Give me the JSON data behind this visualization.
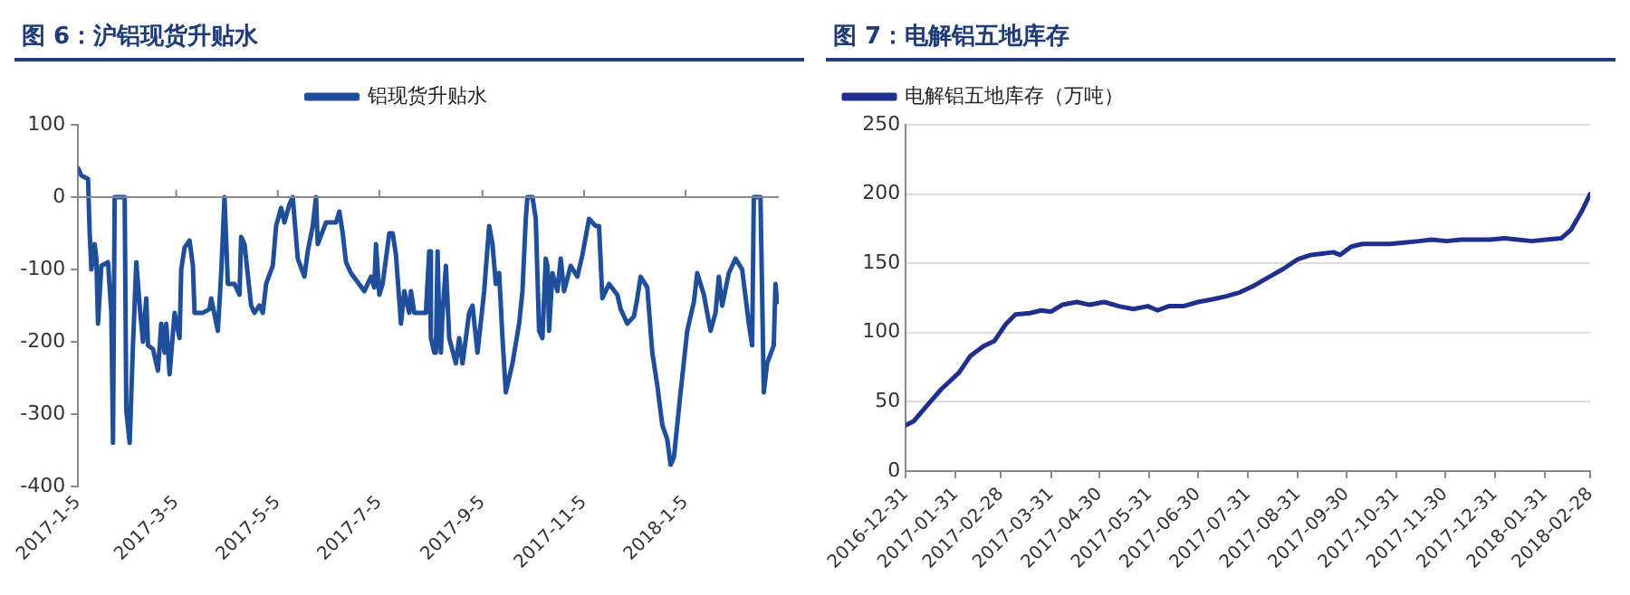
{
  "chart_data": [
    {
      "type": "line",
      "title": "图 6：沪铝现货升贴水",
      "legend": "top",
      "marker": "none",
      "xlim": [
        "2017-01-05",
        "2018-03-02"
      ],
      "ylim": [
        -400,
        100
      ],
      "xticks": [
        {
          "value": "2017-01-05",
          "label": "2017-1-5"
        },
        {
          "value": "2017-03-05",
          "label": "2017-3-5"
        },
        {
          "value": "2017-05-05",
          "label": "2017-5-5"
        },
        {
          "value": "2017-07-05",
          "label": "2017-7-5"
        },
        {
          "value": "2017-09-05",
          "label": "2017-9-5"
        },
        {
          "value": "2017-11-05",
          "label": "2017-11-5"
        },
        {
          "value": "2018-01-05",
          "label": "2018-1-5"
        }
      ],
      "yticks": [
        -400,
        -300,
        -200,
        -100,
        0,
        100
      ],
      "series": [
        {
          "name": "铝现货升贴水",
          "color": "#1f4e9a",
          "x": [
            "2017-01-05",
            "2017-01-07",
            "2017-01-11",
            "2017-01-12",
            "2017-01-13",
            "2017-01-15",
            "2017-01-16",
            "2017-01-17",
            "2017-01-19",
            "2017-01-23",
            "2017-01-25",
            "2017-01-26",
            "2017-01-27",
            "2017-02-02",
            "2017-02-03",
            "2017-02-05",
            "2017-02-07",
            "2017-02-09",
            "2017-02-11",
            "2017-02-13",
            "2017-02-15",
            "2017-02-16",
            "2017-02-19",
            "2017-02-22",
            "2017-02-24",
            "2017-02-26",
            "2017-02-27",
            "2017-03-01",
            "2017-03-04",
            "2017-03-07",
            "2017-03-08",
            "2017-03-10",
            "2017-03-13",
            "2017-03-15",
            "2017-03-16",
            "2017-03-21",
            "2017-03-25",
            "2017-03-26",
            "2017-03-30",
            "2017-04-01",
            "2017-04-03",
            "2017-04-05",
            "2017-04-09",
            "2017-04-12",
            "2017-04-13",
            "2017-04-15",
            "2017-04-19",
            "2017-04-21",
            "2017-04-24",
            "2017-04-26",
            "2017-04-28",
            "2017-05-02",
            "2017-05-04",
            "2017-05-07",
            "2017-05-09",
            "2017-05-12",
            "2017-05-14",
            "2017-05-17",
            "2017-05-21",
            "2017-05-23",
            "2017-05-26",
            "2017-05-28",
            "2017-05-29",
            "2017-06-03",
            "2017-06-09",
            "2017-06-11",
            "2017-06-13",
            "2017-06-15",
            "2017-06-18",
            "2017-06-26",
            "2017-06-30",
            "2017-07-02",
            "2017-07-03",
            "2017-07-05",
            "2017-07-07",
            "2017-07-11",
            "2017-07-13",
            "2017-07-15",
            "2017-07-18",
            "2017-07-20",
            "2017-07-23",
            "2017-07-24",
            "2017-07-26",
            "2017-08-02",
            "2017-08-04",
            "2017-08-05",
            "2017-08-07",
            "2017-08-08",
            "2017-08-09",
            "2017-08-10",
            "2017-08-11",
            "2017-08-12",
            "2017-08-14",
            "2017-08-16",
            "2017-08-20",
            "2017-08-22",
            "2017-08-24",
            "2017-08-28",
            "2017-08-30",
            "2017-09-02",
            "2017-09-06",
            "2017-09-09",
            "2017-09-11",
            "2017-09-13",
            "2017-09-15",
            "2017-09-17",
            "2017-09-19",
            "2017-09-23",
            "2017-09-27",
            "2017-09-29",
            "2017-10-01",
            "2017-10-02",
            "2017-10-05",
            "2017-10-07",
            "2017-10-09",
            "2017-10-11",
            "2017-10-13",
            "2017-10-14",
            "2017-10-15",
            "2017-10-17",
            "2017-10-20",
            "2017-10-22",
            "2017-10-24",
            "2017-10-28",
            "2017-11-01",
            "2017-11-04",
            "2017-11-08",
            "2017-11-12",
            "2017-11-14",
            "2017-11-16",
            "2017-11-20",
            "2017-11-25",
            "2017-11-27",
            "2017-12-01",
            "2017-12-05",
            "2017-12-07",
            "2017-12-09",
            "2017-12-13",
            "2017-12-16",
            "2017-12-19",
            "2017-12-22",
            "2017-12-25",
            "2017-12-27",
            "2017-12-29",
            "2018-01-02",
            "2018-01-06",
            "2018-01-10",
            "2018-01-12",
            "2018-01-16",
            "2018-01-20",
            "2018-01-23",
            "2018-01-25",
            "2018-01-27",
            "2018-01-31",
            "2018-02-04",
            "2018-02-08",
            "2018-02-12",
            "2018-02-14",
            "2018-02-15",
            "2018-02-19",
            "2018-02-21",
            "2018-02-23",
            "2018-02-27",
            "2018-02-28",
            "2018-03-01"
          ],
          "values": [
            40,
            30,
            25,
            -50,
            -100,
            -65,
            -85,
            -175,
            -95,
            -90,
            -160,
            -340,
            0,
            0,
            -295,
            -340,
            -205,
            -90,
            -150,
            -200,
            -140,
            -205,
            -210,
            -240,
            -175,
            -215,
            -175,
            -245,
            -160,
            -195,
            -100,
            -70,
            -60,
            -95,
            -160,
            -160,
            -155,
            -140,
            -185,
            -105,
            0,
            -120,
            -120,
            -135,
            -55,
            -65,
            -150,
            -160,
            -150,
            -160,
            -120,
            -95,
            -40,
            -15,
            -35,
            -10,
            0,
            -85,
            -110,
            -75,
            -40,
            0,
            -65,
            -35,
            -35,
            -20,
            -50,
            -90,
            -105,
            -130,
            -110,
            -125,
            -65,
            -135,
            -120,
            -50,
            -50,
            -80,
            -175,
            -130,
            -160,
            -130,
            -160,
            -160,
            -75,
            -195,
            -215,
            -215,
            -75,
            -175,
            -215,
            -160,
            -95,
            -195,
            -230,
            -195,
            -230,
            -160,
            -150,
            -215,
            -130,
            -40,
            -65,
            -120,
            -105,
            -195,
            -270,
            -230,
            -175,
            -130,
            -30,
            0,
            0,
            -30,
            -185,
            -195,
            -85,
            -95,
            -185,
            -105,
            -130,
            -85,
            -130,
            -95,
            -110,
            -80,
            -30,
            -40,
            -40,
            -140,
            -120,
            -135,
            -155,
            -175,
            -165,
            -140,
            -110,
            -125,
            -215,
            -260,
            -315,
            -335,
            -370,
            -360,
            -270,
            -185,
            -145,
            -105,
            -135,
            -185,
            -160,
            -110,
            -150,
            -105,
            -85,
            -100,
            -175,
            -205,
            0,
            0,
            -270,
            -230,
            -205,
            -120,
            -145
          ]
        }
      ]
    },
    {
      "type": "line",
      "title": "图 7：电解铝五地库存",
      "legend": "top left",
      "marker": "none",
      "grid": "y",
      "xlim": [
        "2016-12-31",
        "2018-02-28"
      ],
      "ylim": [
        0,
        250
      ],
      "xticks": [
        "2016-12-31",
        "2017-01-31",
        "2017-02-28",
        "2017-03-31",
        "2017-04-30",
        "2017-05-31",
        "2017-06-30",
        "2017-07-31",
        "2017-08-31",
        "2017-09-30",
        "2017-10-31",
        "2017-11-30",
        "2017-12-31",
        "2018-01-31",
        "2018-02-28"
      ],
      "yticks": [
        0,
        50,
        100,
        150,
        200,
        250
      ],
      "series": [
        {
          "name": "电解铝五地库存（万吨）",
          "color": "#1f2f8f",
          "x": [
            "2016-12-31",
            "2017-01-05",
            "2017-01-13",
            "2017-01-22",
            "2017-02-02",
            "2017-02-09",
            "2017-02-17",
            "2017-02-24",
            "2017-03-03",
            "2017-03-09",
            "2017-03-18",
            "2017-03-25",
            "2017-03-31",
            "2017-04-07",
            "2017-04-16",
            "2017-04-24",
            "2017-05-03",
            "2017-05-12",
            "2017-05-21",
            "2017-05-30",
            "2017-06-05",
            "2017-06-12",
            "2017-06-21",
            "2017-06-30",
            "2017-07-09",
            "2017-07-17",
            "2017-07-26",
            "2017-08-04",
            "2017-08-13",
            "2017-08-22",
            "2017-08-31",
            "2017-09-08",
            "2017-09-15",
            "2017-09-22",
            "2017-09-26",
            "2017-10-03",
            "2017-10-10",
            "2017-10-18",
            "2017-10-27",
            "2017-11-05",
            "2017-11-14",
            "2017-11-22",
            "2017-12-01",
            "2017-12-10",
            "2017-12-19",
            "2017-12-28",
            "2018-01-06",
            "2018-01-14",
            "2018-01-23",
            "2018-02-01",
            "2018-02-10",
            "2018-02-16",
            "2018-02-23",
            "2018-02-28"
          ],
          "values": [
            33,
            36,
            47,
            59,
            71,
            83,
            90,
            94,
            106,
            113,
            114,
            116,
            115,
            120,
            122,
            120,
            122,
            119,
            117,
            119,
            116,
            119,
            119,
            122,
            124,
            126,
            129,
            134,
            140,
            146,
            153,
            156,
            157,
            158,
            156,
            162,
            164,
            164,
            164,
            165,
            166,
            167,
            166,
            167,
            167,
            167,
            168,
            167,
            166,
            167,
            168,
            174,
            188,
            200
          ]
        }
      ]
    }
  ]
}
